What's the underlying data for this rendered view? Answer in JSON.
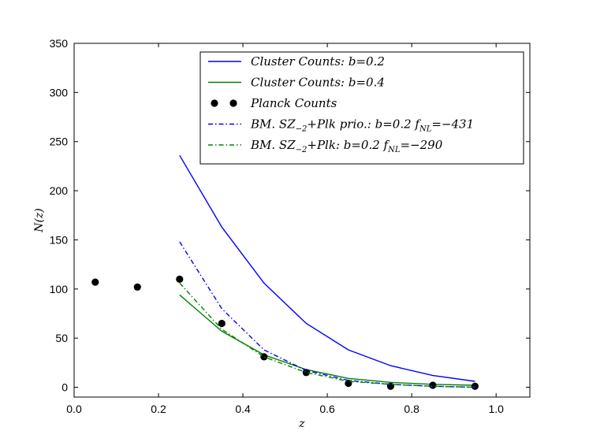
{
  "chart_data": {
    "type": "line",
    "title": "",
    "xlabel": "z",
    "ylabel": "N(z)",
    "xlim": [
      0.0,
      1.08
    ],
    "ylim": [
      -10,
      350
    ],
    "xticks": [
      0.0,
      0.2,
      0.4,
      0.6,
      0.8,
      1.0
    ],
    "xtick_labels": [
      "0.0",
      "0.2",
      "0.4",
      "0.6",
      "0.8",
      "1.0"
    ],
    "yticks": [
      0,
      50,
      100,
      150,
      200,
      250,
      300,
      350
    ],
    "ytick_labels": [
      "0",
      "50",
      "100",
      "150",
      "200",
      "250",
      "300",
      "350"
    ],
    "grid": false,
    "legend_position": "top-right",
    "series": [
      {
        "name": "Cluster Counts: b=0.2",
        "type": "line",
        "color": "#0000ff",
        "style": "solid",
        "x": [
          0.25,
          0.35,
          0.45,
          0.55,
          0.65,
          0.75,
          0.85,
          0.95
        ],
        "y": [
          236,
          163,
          106,
          65,
          38,
          22,
          12,
          6
        ]
      },
      {
        "name": "Cluster Counts: b=0.4",
        "type": "line",
        "color": "#008000",
        "style": "solid",
        "x": [
          0.25,
          0.35,
          0.45,
          0.55,
          0.65,
          0.75,
          0.85,
          0.95
        ],
        "y": [
          94,
          57,
          33,
          18,
          9,
          5,
          3,
          2
        ]
      },
      {
        "name": "Planck Counts",
        "type": "scatter",
        "color": "#000000",
        "x": [
          0.05,
          0.15,
          0.25,
          0.35,
          0.45,
          0.55,
          0.65,
          0.75,
          0.85,
          0.95
        ],
        "y": [
          107,
          102,
          110,
          65,
          31,
          15,
          4,
          1,
          2,
          1
        ]
      },
      {
        "name": "BM. SZ−2+Plk prio.: b=0.2 fNL=−431",
        "type": "line",
        "color": "#0000ff",
        "style": "dashdot",
        "x": [
          0.25,
          0.35,
          0.45,
          0.55,
          0.65,
          0.75,
          0.85,
          0.95
        ],
        "y": [
          148,
          80,
          38,
          17,
          7,
          3,
          1,
          0
        ]
      },
      {
        "name": "BM. SZ−2+Plk: b=0.2 fNL=−290",
        "type": "line",
        "color": "#008000",
        "style": "dashdot",
        "x": [
          0.25,
          0.35,
          0.45,
          0.55,
          0.65,
          0.75,
          0.85,
          0.95
        ],
        "y": [
          106,
          59,
          31,
          15,
          6,
          3,
          1,
          0
        ]
      }
    ],
    "legend": [
      {
        "name": "Cluster Counts",
        "value": ": b=0.2"
      },
      {
        "name": "Cluster Counts",
        "value": ": b=0.4"
      },
      {
        "name": "Planck Counts",
        "value": ""
      },
      {
        "name": "BM. SZ",
        "sub": "−2",
        "after": "+Plk prio.",
        "value": ": b=0.2 f",
        "sub2": "NL",
        "tail": "=−431"
      },
      {
        "name": "BM. SZ",
        "sub": "−2",
        "after": "+Plk",
        "value": ": b=0.2 f",
        "sub2": "NL",
        "tail": "=−290"
      }
    ]
  }
}
